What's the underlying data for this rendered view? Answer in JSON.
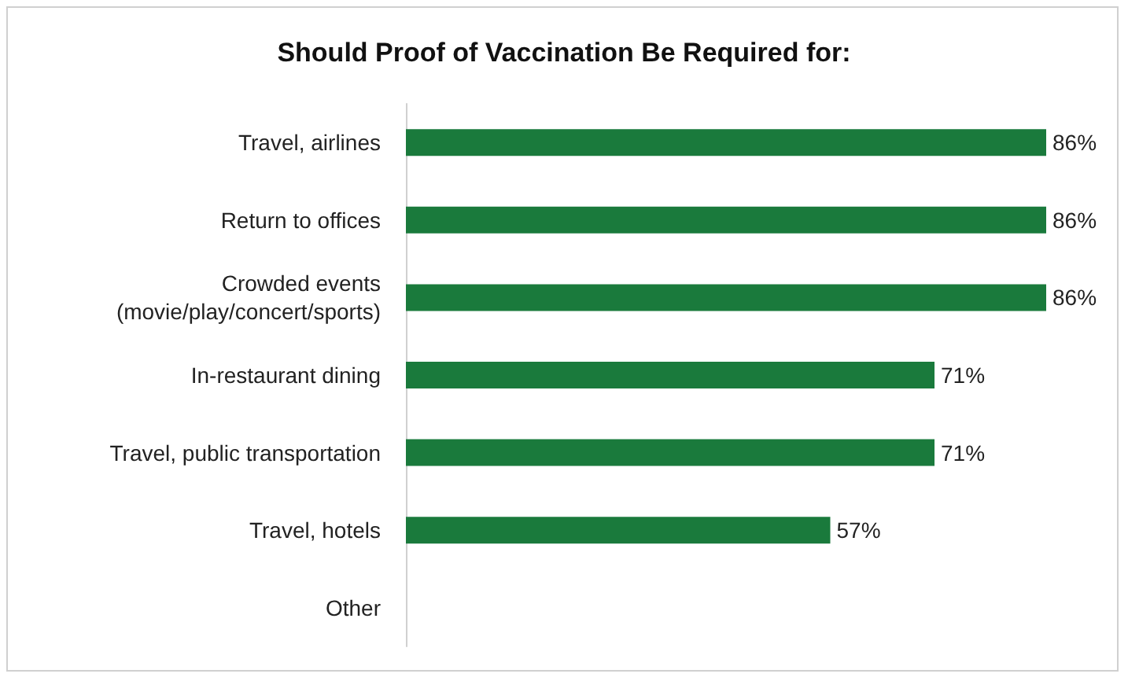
{
  "chart_data": {
    "type": "bar",
    "orientation": "horizontal",
    "title": "Should Proof of Vaccination Be Required for:",
    "categories": [
      "Travel, airlines",
      "Return to offices",
      "Crowded events\n(movie/play/concert/sports)",
      "In-restaurant dining",
      "Travel, public transportation",
      "Travel, hotels",
      "Other"
    ],
    "values": [
      86,
      86,
      86,
      71,
      71,
      57,
      0
    ],
    "value_labels": [
      "86%",
      "86%",
      "86%",
      "71%",
      "71%",
      "57%",
      null
    ],
    "color": "#1a7a3c"
  }
}
